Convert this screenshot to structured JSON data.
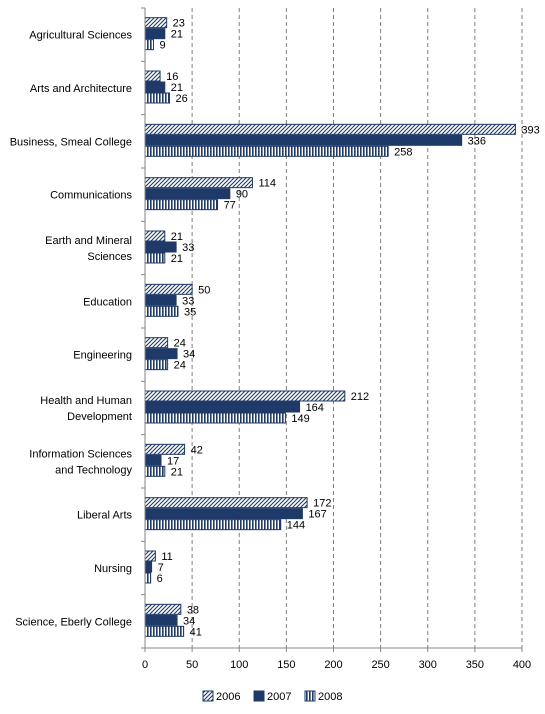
{
  "chart_data": {
    "type": "bar",
    "orientation": "horizontal",
    "categories": [
      [
        "Agricultural Sciences"
      ],
      [
        "Arts and Architecture"
      ],
      [
        "Business, Smeal College"
      ],
      [
        "Communications"
      ],
      [
        "Earth and Mineral",
        "Sciences"
      ],
      [
        "Education"
      ],
      [
        "Engineering"
      ],
      [
        "Health and Human",
        "Development"
      ],
      [
        "Information Sciences",
        "and Technology"
      ],
      [
        "Liberal Arts"
      ],
      [
        "Nursing"
      ],
      [
        "Science, Eberly College"
      ]
    ],
    "series": [
      {
        "name": "2006",
        "values": [
          23,
          16,
          393,
          114,
          21,
          50,
          24,
          212,
          42,
          172,
          11,
          38
        ]
      },
      {
        "name": "2007",
        "values": [
          21,
          21,
          336,
          90,
          33,
          33,
          34,
          164,
          17,
          167,
          7,
          34
        ]
      },
      {
        "name": "2008",
        "values": [
          9,
          26,
          258,
          77,
          21,
          35,
          24,
          149,
          21,
          144,
          6,
          41
        ]
      }
    ],
    "xlim": [
      0,
      400
    ],
    "xticks": [
      0,
      50,
      100,
      150,
      200,
      250,
      300,
      350,
      400
    ],
    "grid": "vertical-dashed",
    "legend": "bottom",
    "colors": {
      "2006": "#1f3a68",
      "2007": "#1f3a68",
      "2008": "#1f3a68"
    },
    "fill_patterns": [
      "diagonal-hatch",
      "solid",
      "vertical-stripes"
    ]
  }
}
